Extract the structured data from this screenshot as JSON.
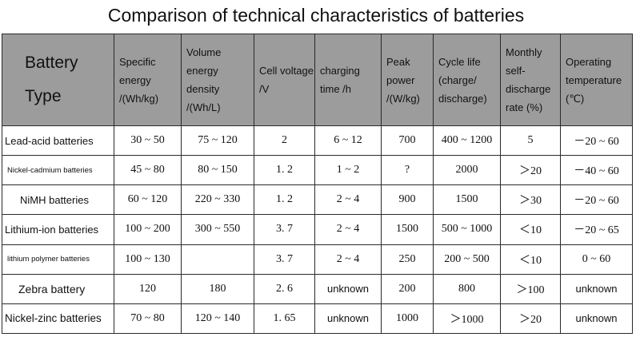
{
  "title": "Comparison of technical characteristics of batteries",
  "headers": [
    "Battery Type",
    "Specific energy /(Wh/kg)",
    "Volume energy density /(Wh/L)",
    "Cell voltage /V",
    "charging time /h",
    "Peak power /(W/kg)",
    "Cycle life (charge/ discharge)",
    "Monthly self-discharge rate (%)",
    "Operating temperature (℃)"
  ],
  "rows": [
    [
      "Lead-acid batteries",
      "30 ~ 50",
      "75 ~ 120",
      "2",
      "6 ~ 12",
      "700",
      "400 ~ 1200",
      "5",
      "－20 ~ 60"
    ],
    [
      "Nickel-cadmium batteries",
      "45 ~ 80",
      "80 ~ 150",
      "1. 2",
      "1 ~ 2",
      "?",
      "2000",
      "＞20",
      "－40 ~ 60"
    ],
    [
      "NiMH batteries",
      "60 ~ 120",
      "220 ~ 330",
      "1. 2",
      "2 ~ 4",
      "900",
      "1500",
      "＞30",
      "－20 ~ 60"
    ],
    [
      "Lithium-ion batteries",
      "100 ~ 200",
      "300 ~ 550",
      "3. 7",
      "2 ~ 4",
      "1500",
      "500 ~ 1000",
      "＜10",
      "－20 ~ 65"
    ],
    [
      "lithium polymer batteries",
      "100 ~ 130",
      "",
      "3. 7",
      "2 ~ 4",
      "250",
      "200 ~ 500",
      "＜10",
      "0 ~ 60"
    ],
    [
      "Zebra battery",
      "120",
      "180",
      "2. 6",
      "unknown",
      "200",
      "800",
      "＞100",
      "unknown"
    ],
    [
      "Nickel-zinc batteries",
      "70 ~ 80",
      "120 ~ 140",
      "1. 65",
      "unknown",
      "1000",
      "＞1000",
      "＞20",
      "unknown"
    ]
  ]
}
